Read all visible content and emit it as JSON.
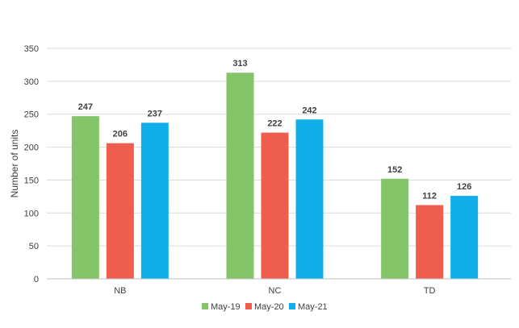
{
  "chart_data": {
    "type": "bar",
    "title": "",
    "xlabel": "",
    "ylabel": "Number of units",
    "ylim": [
      0,
      350
    ],
    "yticks": [
      0,
      50,
      100,
      150,
      200,
      250,
      300,
      350
    ],
    "grid": "horizontal",
    "legend_position": "bottom",
    "categories": [
      "NB",
      "NC",
      "TD"
    ],
    "series": [
      {
        "name": "May-19",
        "color": "#84c56a",
        "values": [
          247,
          313,
          152
        ]
      },
      {
        "name": "May-20",
        "color": "#ee5d4d",
        "values": [
          206,
          222,
          112
        ]
      },
      {
        "name": "May-21",
        "color": "#0fb0ea",
        "values": [
          237,
          242,
          126
        ]
      }
    ]
  }
}
